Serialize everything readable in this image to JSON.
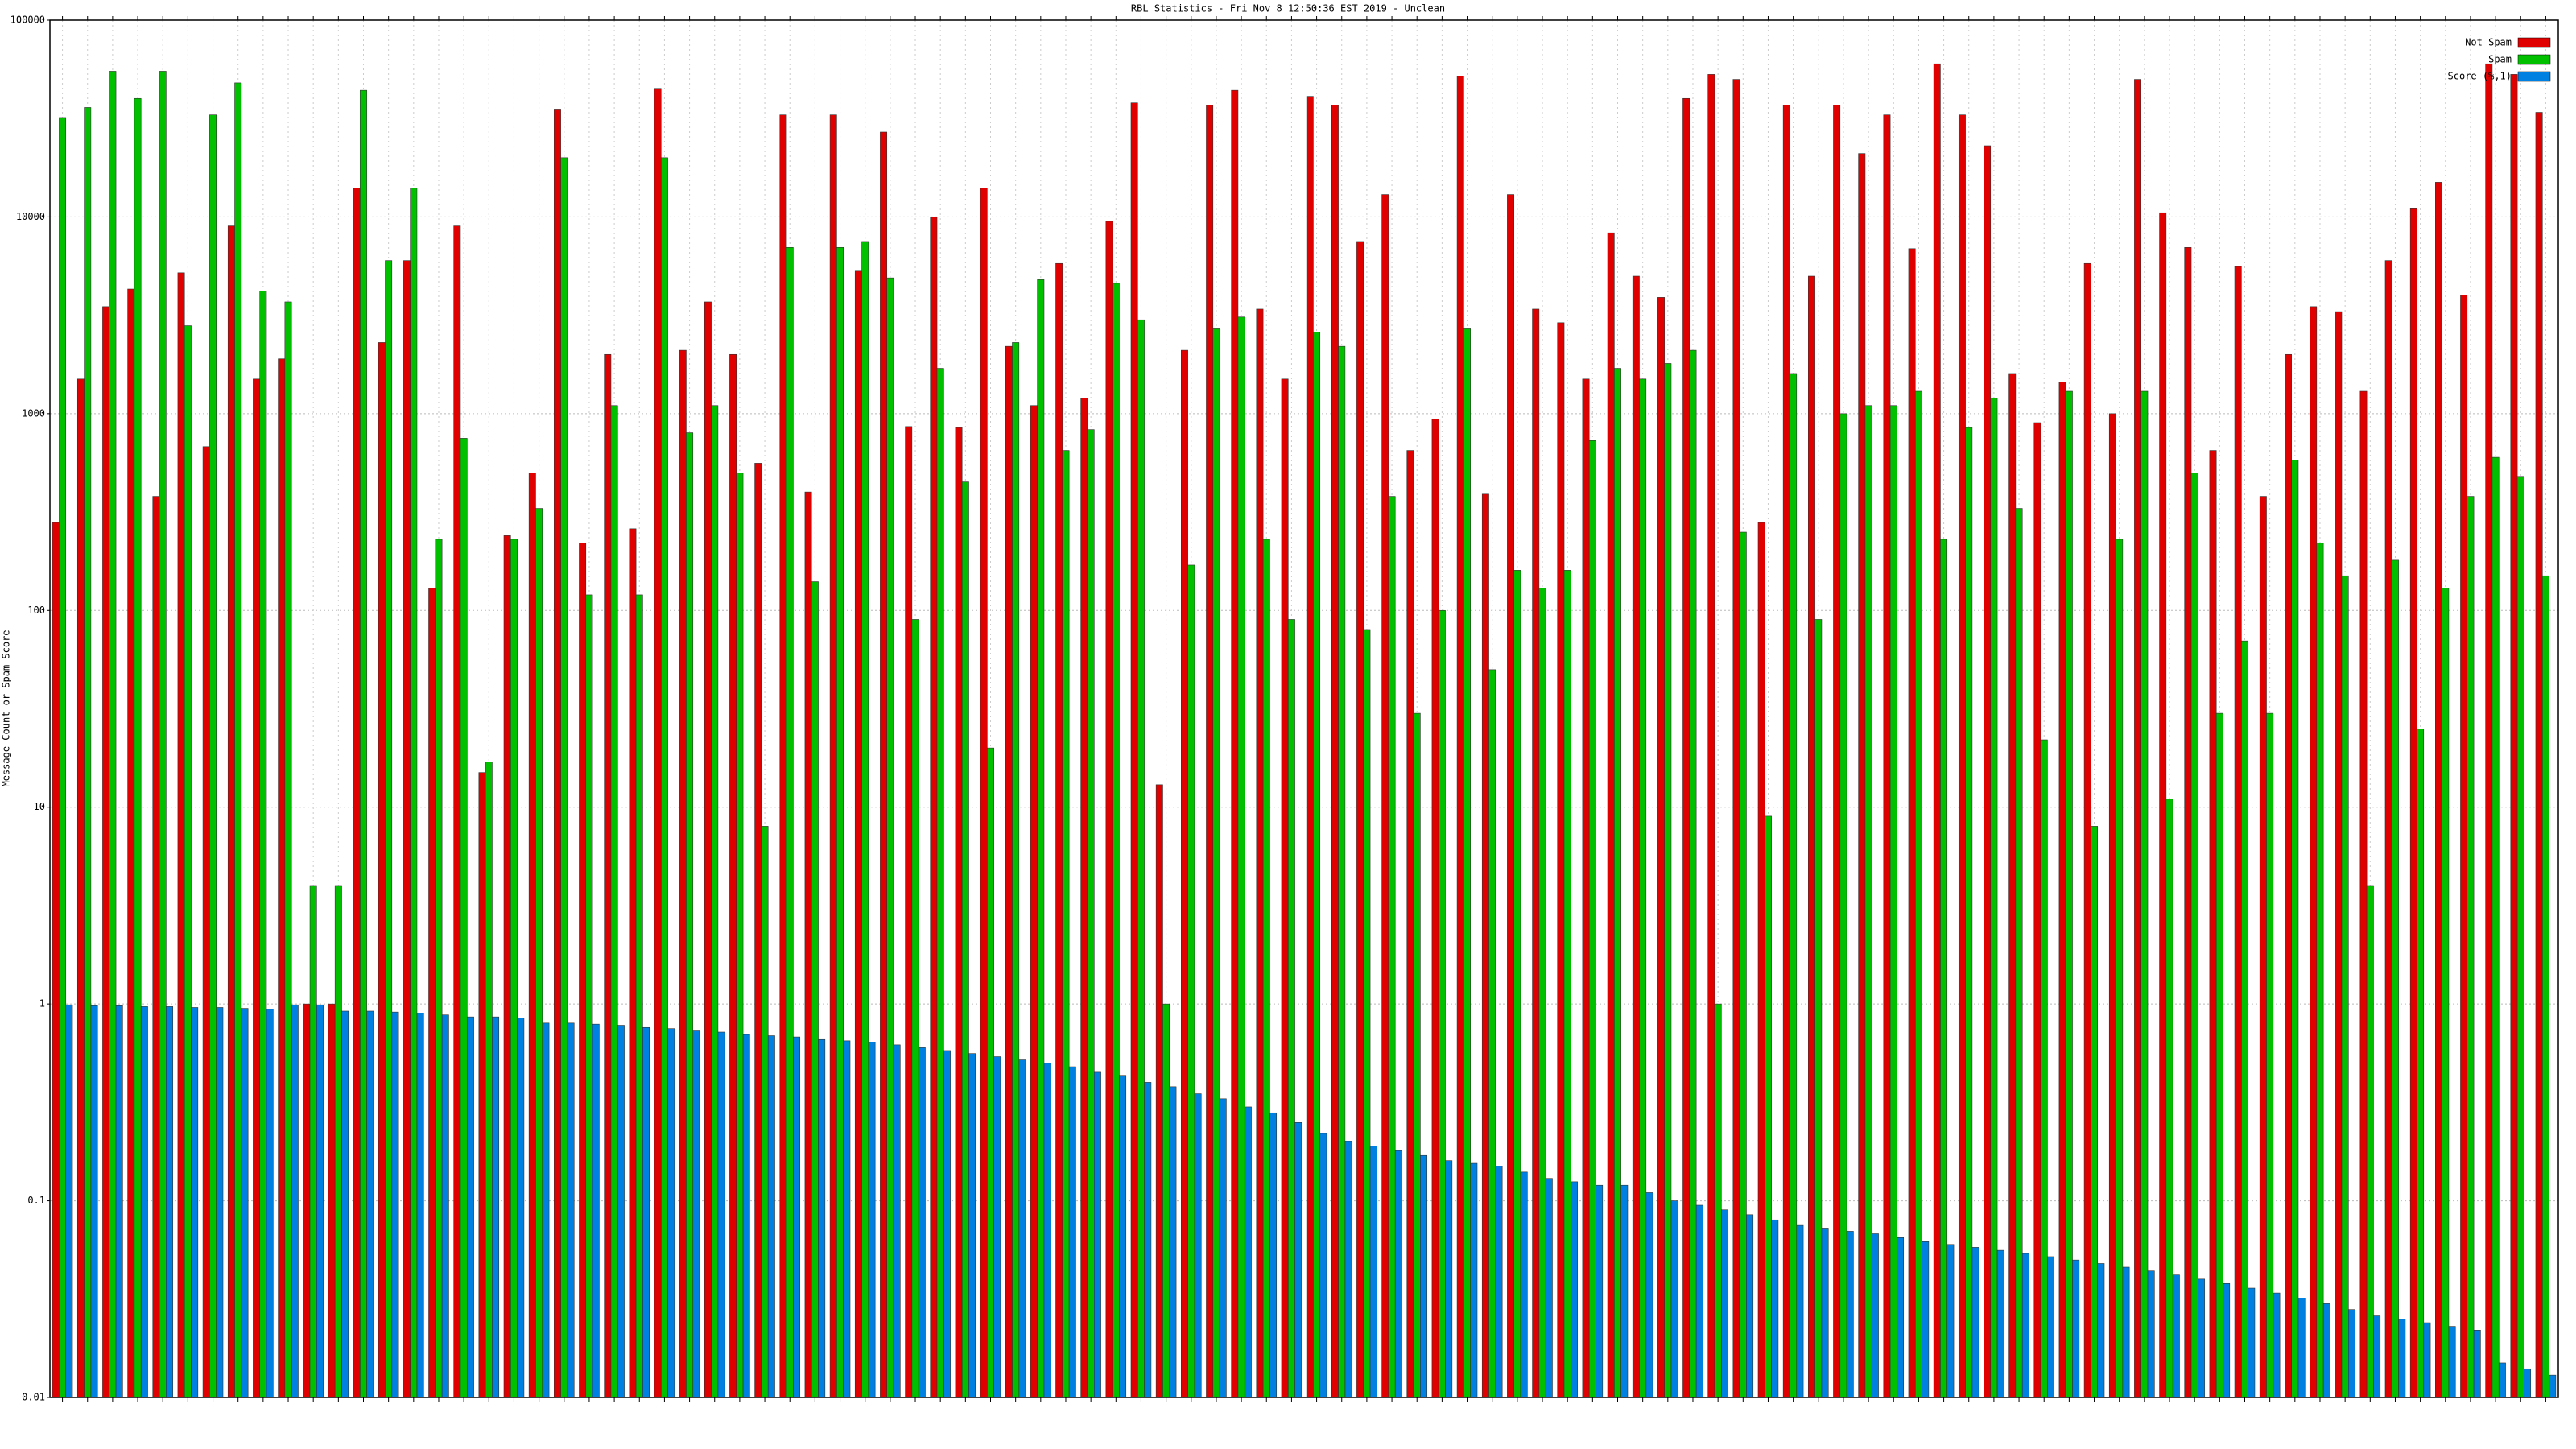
{
  "chart_data": {
    "type": "bar",
    "title": "RBL Statistics - Fri Nov 8 12:50:36 EST 2019 - Unclean",
    "y_label": "Message Count or Spam Score",
    "log_scale": true,
    "grid": true,
    "legend": "upper right",
    "ylim": [
      0.01,
      100000
    ],
    "yticks": [
      0.01,
      0.1,
      1,
      10,
      100,
      1000,
      10000,
      100000
    ],
    "categories": [
      null,
      null,
      null,
      null,
      null,
      null,
      null,
      null,
      null,
      null,
      null,
      null,
      null,
      null,
      null,
      null,
      null,
      null,
      null,
      null,
      null,
      null,
      null,
      null,
      null,
      null,
      null,
      null,
      null,
      null,
      null,
      null,
      null,
      null,
      null,
      null,
      null,
      null,
      null,
      null,
      null,
      null,
      null,
      null,
      null,
      null,
      null,
      null,
      null,
      null,
      null,
      null,
      null,
      null,
      null,
      null,
      null,
      null,
      null,
      null,
      null,
      null,
      null,
      null,
      null,
      null,
      null,
      null,
      null,
      null,
      null,
      null,
      null,
      null,
      null,
      null,
      null,
      null,
      null,
      null,
      null,
      null,
      null,
      null,
      null,
      null,
      null,
      null,
      null,
      null,
      null,
      null,
      null,
      null,
      null,
      null,
      null,
      null,
      null,
      null
    ],
    "series": [
      {
        "name": "Not Spam",
        "color": "#e00000",
        "values": [
          280,
          1500,
          3500,
          4300,
          380,
          5200,
          680,
          9000,
          1500,
          1900,
          1,
          1,
          14000,
          2300,
          6000,
          130,
          9000,
          15,
          240,
          500,
          35000,
          220,
          2000,
          260,
          45000,
          2100,
          3700,
          2000,
          560,
          33000,
          400,
          33000,
          5300,
          27000,
          860,
          10000,
          850,
          14000,
          2200,
          1100,
          5800,
          1200,
          9500,
          38000,
          13,
          2100,
          37000,
          44000,
          3400,
          1500,
          41000,
          37000,
          7500,
          13000,
          650,
          940,
          52000,
          390,
          13000,
          3400,
          2900,
          1500,
          8300,
          5000,
          3900,
          40000,
          53000,
          50000,
          280,
          37000,
          5000,
          37000,
          21000,
          33000,
          6900,
          60000,
          33000,
          23000,
          1600,
          900,
          1450,
          5800,
          1000,
          50000,
          10500,
          7000,
          650,
          5600,
          380,
          2000,
          3500,
          3300,
          1300,
          6000,
          11000,
          15000,
          4000,
          60000,
          53000,
          34000
        ]
      },
      {
        "name": "Spam",
        "color": "#00c000",
        "values": [
          32000,
          36000,
          55000,
          40000,
          55000,
          2800,
          33000,
          48000,
          4200,
          3700,
          4,
          4,
          44000,
          6000,
          14000,
          230,
          750,
          17,
          230,
          330,
          20000,
          120,
          1100,
          120,
          20000,
          800,
          1100,
          500,
          8,
          7000,
          140,
          7000,
          7500,
          4900,
          90,
          1700,
          450,
          20,
          2300,
          4800,
          650,
          830,
          4600,
          3000,
          1,
          170,
          2700,
          3100,
          230,
          90,
          2600,
          2200,
          80,
          380,
          30,
          100,
          2700,
          50,
          160,
          130,
          160,
          730,
          1700,
          1500,
          1800,
          2100,
          1,
          250,
          9,
          1600,
          90,
          1000,
          1100,
          1100,
          1300,
          230,
          850,
          1200,
          330,
          22,
          1300,
          8,
          230,
          1300,
          11,
          500,
          30,
          70,
          30,
          580,
          220,
          150,
          4,
          180,
          25,
          130,
          380,
          600,
          480,
          150
        ]
      },
      {
        "name": "Score (%,1)",
        "color": "#0080e0",
        "values": [
          0.99,
          0.98,
          0.98,
          0.97,
          0.97,
          0.96,
          0.96,
          0.95,
          0.94,
          0.99,
          0.99,
          0.92,
          0.92,
          0.91,
          0.9,
          0.88,
          0.86,
          0.86,
          0.85,
          0.8,
          0.8,
          0.79,
          0.78,
          0.76,
          0.75,
          0.73,
          0.72,
          0.7,
          0.69,
          0.68,
          0.66,
          0.65,
          0.64,
          0.62,
          0.6,
          0.58,
          0.56,
          0.54,
          0.52,
          0.5,
          0.48,
          0.45,
          0.43,
          0.4,
          0.38,
          0.35,
          0.33,
          0.3,
          0.28,
          0.25,
          0.22,
          0.2,
          0.19,
          0.18,
          0.17,
          0.16,
          0.155,
          0.15,
          0.14,
          0.13,
          0.125,
          0.12,
          0.12,
          0.11,
          0.1,
          0.095,
          0.09,
          0.085,
          0.08,
          0.075,
          0.072,
          0.07,
          0.068,
          0.065,
          0.062,
          0.06,
          0.058,
          0.056,
          0.054,
          0.052,
          0.05,
          0.048,
          0.046,
          0.044,
          0.042,
          0.04,
          0.038,
          0.036,
          0.034,
          0.032,
          0.03,
          0.028,
          0.026,
          0.025,
          0.024,
          0.023,
          0.022,
          0.015,
          0.014,
          0.013
        ]
      }
    ]
  }
}
